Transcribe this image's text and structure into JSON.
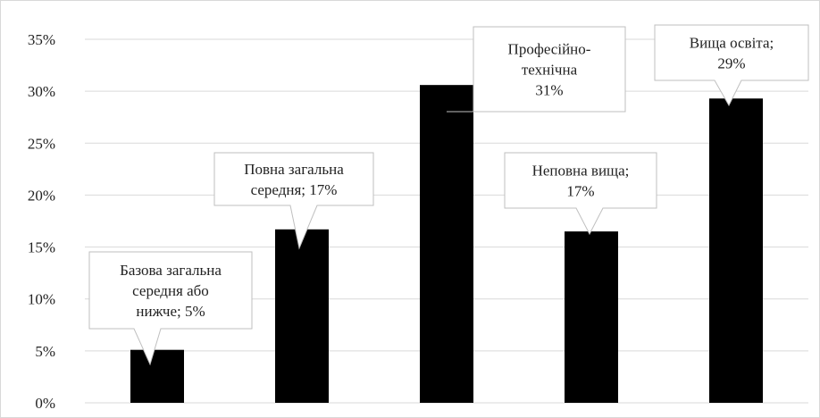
{
  "chart_data": {
    "type": "bar",
    "values": [
      5.1,
      16.7,
      30.6,
      16.5,
      29.3
    ],
    "value_labels": [
      "Базова загальна\nсередня або\nнижче; 5%",
      "Повна загальна\nсередня; 17%",
      "Професійно-\nтехнічна\n31%",
      "Неповна вища;\n17%",
      "Вища освіта;\n29%"
    ],
    "color": "#000000",
    "ylim": [
      0,
      35
    ],
    "yticks": [
      {
        "value": 0,
        "label": "0%"
      },
      {
        "value": 5,
        "label": "5%"
      },
      {
        "value": 10,
        "label": "10%"
      },
      {
        "value": 15,
        "label": "15%"
      },
      {
        "value": 20,
        "label": "20%"
      },
      {
        "value": 25,
        "label": "25%"
      },
      {
        "value": 30,
        "label": "30%"
      },
      {
        "value": 35,
        "label": "35%"
      }
    ],
    "grid": true
  }
}
